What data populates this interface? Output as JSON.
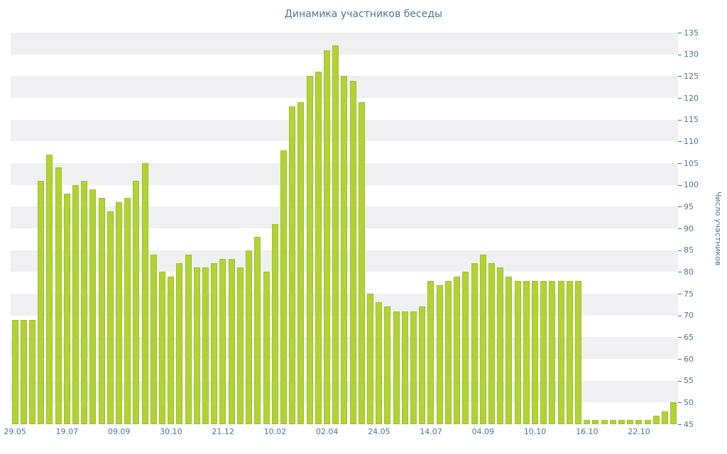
{
  "chart_data": {
    "type": "bar",
    "title": "Динамика участников беседы",
    "ylabel": "Число участников",
    "xlabel": "",
    "ylim": [
      45,
      135
    ],
    "y_tick_step": 5,
    "y_tick_labels": [
      45,
      50,
      55,
      60,
      65,
      70,
      75,
      80,
      85,
      90,
      95,
      100,
      105,
      110,
      115,
      120,
      125,
      130,
      135
    ],
    "x_tick_labels": [
      "29.05",
      "19.07",
      "09.09",
      "30.10",
      "21.12",
      "10.02",
      "02.04",
      "24.05",
      "14.07",
      "04.09",
      "10.10",
      "16.10",
      "22.10"
    ],
    "x_tick_indices": [
      0,
      6,
      12,
      18,
      24,
      30,
      36,
      42,
      48,
      54,
      60,
      66,
      72
    ],
    "values": [
      69,
      69,
      69,
      101,
      107,
      104,
      98,
      100,
      101,
      99,
      97,
      94,
      96,
      97,
      101,
      105,
      84,
      80,
      79,
      82,
      84,
      81,
      81,
      82,
      83,
      83,
      81,
      85,
      88,
      80,
      91,
      108,
      118,
      119,
      125,
      126,
      131,
      132,
      125,
      124,
      119,
      75,
      73,
      72,
      71,
      71,
      71,
      72,
      78,
      77,
      78,
      79,
      80,
      82,
      84,
      82,
      81,
      79,
      78,
      78,
      78,
      78,
      78,
      78,
      78,
      78,
      46,
      46,
      46,
      46,
      46,
      46,
      46,
      46,
      47,
      48,
      50
    ],
    "grid": "horizontal-striped-bands",
    "legend": "none",
    "colors": {
      "bar_fill": "#b2d235",
      "bar_border": "#9cc02a",
      "axis_text": "#4a7697",
      "stripe": "#f0f0f2",
      "background": "#ffffff"
    }
  }
}
